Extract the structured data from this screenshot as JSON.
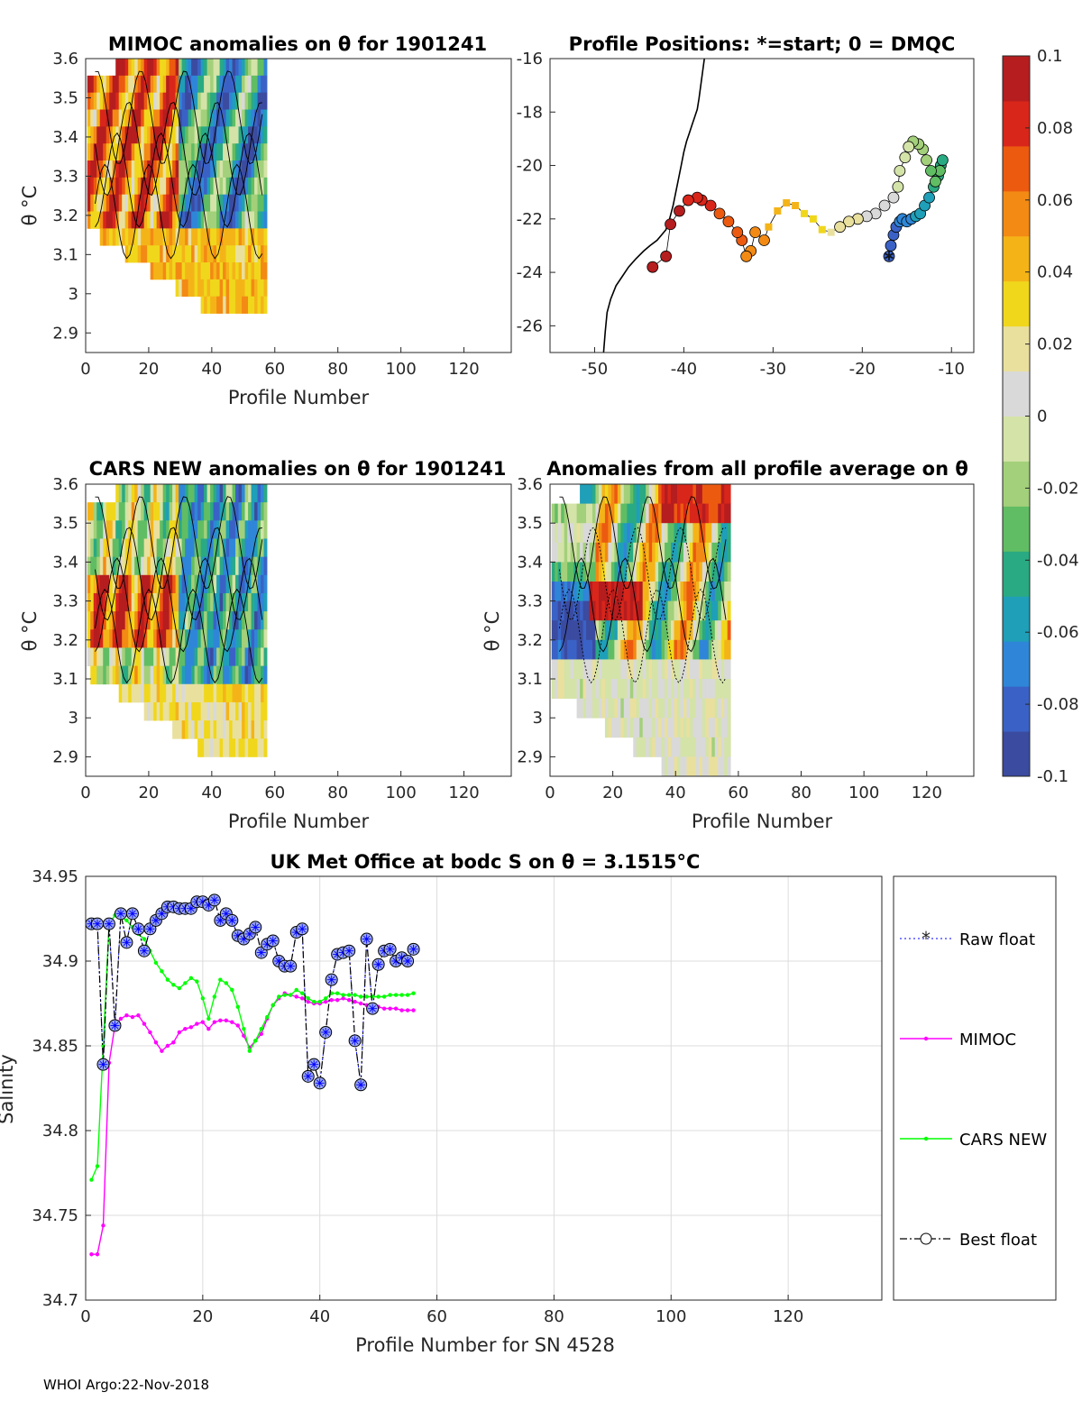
{
  "footer": "WHOI Argo:22-Nov-2018",
  "colors": {
    "raw_float": "#0000ff",
    "mimoc": "#ff00ff",
    "cars_new": "#00ff00",
    "best_float": "#000000",
    "best_marker_fill": "#9aa8ee",
    "axis": "#262626",
    "grid": "#dcdcdc",
    "colormap": [
      "#3b4ba0",
      "#3a62c6",
      "#2f86d8",
      "#1f9fb8",
      "#2aaa82",
      "#61bd63",
      "#a3d07a",
      "#d4e3a8",
      "#d9d9d9",
      "#e9e09e",
      "#f0d71c",
      "#f4b418",
      "#f38a14",
      "#ec5a10",
      "#d9261a",
      "#b51d1f"
    ]
  },
  "colorbar": {
    "ticks": [
      "0.1",
      "0.08",
      "0.06",
      "0.04",
      "0.02",
      "0",
      "-0.02",
      "-0.04",
      "-0.06",
      "-0.08",
      "-0.1"
    ],
    "lim": [
      -0.1,
      0.1
    ]
  },
  "chart_data": [
    {
      "id": "mimoc",
      "type": "heatmap",
      "title": "MIMOC anomalies on θ  for 1901241",
      "xlabel": "Profile Number",
      "ylabel": "θ °C",
      "xlim": [
        0,
        135
      ],
      "ylim": [
        2.85,
        3.6
      ],
      "xticks": [
        "0",
        "20",
        "40",
        "60",
        "80",
        "100",
        "120"
      ],
      "yticks": [
        "3.6",
        "3.5",
        "3.4",
        "3.3",
        "3.2",
        "3.1",
        "3",
        "2.9"
      ],
      "xrange_data": [
        1,
        57
      ],
      "theta_range": [
        2.95,
        3.6
      ],
      "anomaly_range": [
        -0.1,
        0.1
      ]
    },
    {
      "id": "positions",
      "type": "scatter",
      "title": "Profile Positions: *=start; 0 = DMQC",
      "xlim": [
        -55,
        -7.5
      ],
      "ylim": [
        -27,
        -16
      ],
      "xticks": [
        "-50",
        "-40",
        "-30",
        "-20",
        "-10"
      ],
      "yticks": [
        "-16",
        "-18",
        "-20",
        "-22",
        "-24",
        "-26"
      ],
      "start": [
        -17,
        -23.5
      ],
      "track_lon": [
        -17,
        -16.8,
        -16.5,
        -16.2,
        -15.8,
        -15.5,
        -15,
        -14.5,
        -14,
        -13.5,
        -13,
        -12.5,
        -12,
        -11.5,
        -11.2,
        -11,
        -11.3,
        -11.8,
        -12.3,
        -12.8,
        -13.2,
        -13.7,
        -14.3,
        -14.8,
        -15.2,
        -15.8,
        -16,
        -16.5,
        -17.5,
        -18.5,
        -19.5,
        -20.5,
        -21.5,
        -22.5,
        -23.5,
        -24.5,
        -25.5,
        -26.5,
        -27.5,
        -28.5,
        -29.5,
        -30.5,
        -31,
        -32,
        -32.5,
        -33,
        -33.5,
        -34,
        -35,
        -36,
        -37,
        -38,
        -38.5,
        -39.5,
        -40.5,
        -41.5,
        -42,
        -43.5
      ],
      "track_lat": [
        -23.4,
        -23,
        -22.6,
        -22.3,
        -22.1,
        -22,
        -22.1,
        -22,
        -21.9,
        -21.8,
        -21.5,
        -21.2,
        -20.8,
        -20.4,
        -20,
        -19.8,
        -20.2,
        -20.6,
        -20.2,
        -19.8,
        -19.4,
        -19.2,
        -19.1,
        -19.3,
        -19.7,
        -20.2,
        -20.8,
        -21.2,
        -21.5,
        -21.8,
        -21.9,
        -22,
        -22.1,
        -22.3,
        -22.5,
        -22.4,
        -22,
        -21.8,
        -21.5,
        -21.4,
        -21.7,
        -22.3,
        -22.8,
        -22.5,
        -23.2,
        -23.4,
        -22.8,
        -22.5,
        -22.1,
        -21.8,
        -21.5,
        -21.3,
        -21.2,
        -21.3,
        -21.7,
        -22.2,
        -23.4,
        -23.8
      ],
      "coast_lon": [
        -49,
        -48.8,
        -48.6,
        -48.2,
        -47.6,
        -47,
        -46.2,
        -45.4,
        -44.5,
        -43.8,
        -43,
        -42.5,
        -42,
        -41.6,
        -41.2,
        -40.9,
        -40.6,
        -40.3,
        -40,
        -39.7,
        -39.4,
        -39.1,
        -38.8,
        -38.5,
        -38.3,
        -38.1,
        -37.9,
        -37.7
      ],
      "coast_lat": [
        -27,
        -26.2,
        -25.5,
        -25,
        -24.5,
        -24.2,
        -23.8,
        -23.5,
        -23.2,
        -23,
        -22.8,
        -22.6,
        -22.4,
        -22,
        -21.5,
        -21,
        -20.5,
        -20,
        -19.5,
        -19.1,
        -18.8,
        -18.5,
        -18.2,
        -17.9,
        -17.5,
        -17,
        -16.5,
        -16
      ]
    },
    {
      "id": "cars",
      "type": "heatmap",
      "title": "CARS NEW anomalies on θ for 1901241",
      "xlabel": "Profile Number",
      "ylabel": "θ °C",
      "xlim": [
        0,
        135
      ],
      "ylim": [
        2.85,
        3.6
      ],
      "xticks": [
        "0",
        "20",
        "40",
        "60",
        "80",
        "100",
        "120"
      ],
      "yticks": [
        "3.6",
        "3.5",
        "3.4",
        "3.3",
        "3.2",
        "3.1",
        "3",
        "2.9"
      ],
      "xrange_data": [
        1,
        57
      ],
      "theta_range": [
        2.9,
        3.6
      ],
      "anomaly_range": [
        -0.1,
        0.1
      ]
    },
    {
      "id": "allavg",
      "type": "heatmap",
      "title": "Anomalies from all profile average on θ",
      "xlabel": "Profile Number",
      "ylabel": "θ °C",
      "xlim": [
        0,
        135
      ],
      "ylim": [
        2.85,
        3.6
      ],
      "xticks": [
        "0",
        "20",
        "40",
        "60",
        "80",
        "100",
        "120"
      ],
      "yticks": [
        "3.6",
        "3.5",
        "3.4",
        "3.3",
        "3.2",
        "3.1",
        "3",
        "2.9"
      ],
      "xrange_data": [
        1,
        57
      ],
      "theta_range": [
        2.85,
        3.6
      ],
      "anomaly_range": [
        -0.1,
        0.1
      ]
    },
    {
      "id": "salinity",
      "type": "line",
      "title": "UK Met Office at bodc S on θ = 3.1515°C",
      "xlabel": "Profile Number for SN 4528",
      "ylabel": "Salinity",
      "xlim": [
        0,
        136
      ],
      "ylim": [
        34.7,
        34.95
      ],
      "xticks": [
        "0",
        "20",
        "40",
        "60",
        "80",
        "100",
        "120"
      ],
      "yticks": [
        "34.95",
        "34.9",
        "34.85",
        "34.8",
        "34.75",
        "34.7"
      ],
      "legend": [
        "Raw float",
        "MIMOC",
        "CARS NEW",
        "Best float"
      ],
      "series": [
        {
          "name": "Raw float",
          "x": [
            1,
            2,
            3,
            4,
            5,
            6,
            7,
            8,
            9,
            10,
            11,
            12,
            13,
            14,
            15,
            16,
            17,
            18,
            19,
            20,
            21,
            22,
            23,
            24,
            25,
            26,
            27,
            28,
            29,
            30,
            31,
            32,
            33,
            34,
            35,
            36,
            37,
            38,
            39,
            40,
            41,
            42,
            43,
            44,
            45,
            46,
            47,
            48,
            49,
            50,
            51,
            52,
            53,
            54,
            55,
            56
          ],
          "values": [
            34.922,
            34.922,
            34.839,
            34.922,
            34.862,
            34.928,
            34.911,
            34.928,
            34.919,
            34.906,
            34.919,
            34.924,
            34.928,
            34.932,
            34.932,
            34.931,
            34.931,
            34.931,
            34.935,
            34.935,
            34.933,
            34.936,
            34.924,
            34.928,
            34.924,
            34.915,
            34.913,
            34.916,
            34.92,
            34.905,
            34.91,
            34.912,
            34.9,
            34.897,
            34.897,
            34.917,
            34.919,
            34.832,
            34.839,
            34.828,
            34.858,
            34.889,
            34.904,
            34.905,
            34.906,
            34.853,
            34.827,
            34.913,
            34.872,
            34.898,
            34.906,
            34.907,
            34.9,
            34.902,
            34.9,
            34.907
          ]
        },
        {
          "name": "MIMOC",
          "x": [
            1,
            2,
            3,
            4,
            5,
            6,
            7,
            8,
            9,
            10,
            11,
            12,
            13,
            14,
            15,
            16,
            17,
            18,
            19,
            20,
            21,
            22,
            23,
            24,
            25,
            26,
            27,
            28,
            29,
            30,
            31,
            32,
            33,
            34,
            35,
            36,
            37,
            38,
            39,
            40,
            41,
            42,
            43,
            44,
            45,
            46,
            47,
            48,
            49,
            50,
            51,
            52,
            53,
            54,
            55,
            56
          ],
          "values": [
            34.727,
            34.727,
            34.744,
            34.84,
            34.862,
            34.866,
            34.868,
            34.867,
            34.868,
            34.863,
            34.858,
            34.852,
            34.847,
            34.85,
            34.852,
            34.858,
            34.86,
            34.861,
            34.863,
            34.864,
            34.86,
            34.864,
            34.865,
            34.865,
            34.864,
            34.862,
            34.856,
            34.849,
            34.853,
            34.857,
            34.866,
            34.874,
            34.878,
            34.881,
            34.88,
            34.879,
            34.878,
            34.876,
            34.875,
            34.875,
            34.876,
            34.877,
            34.877,
            34.878,
            34.877,
            34.876,
            34.875,
            34.874,
            34.874,
            34.873,
            34.872,
            34.872,
            34.872,
            34.871,
            34.871,
            34.871
          ]
        },
        {
          "name": "CARS NEW",
          "x": [
            1,
            2,
            3,
            4,
            5,
            6,
            7,
            8,
            9,
            10,
            11,
            12,
            13,
            14,
            15,
            16,
            17,
            18,
            19,
            20,
            21,
            22,
            23,
            24,
            25,
            26,
            27,
            28,
            29,
            30,
            31,
            32,
            33,
            34,
            35,
            36,
            37,
            38,
            39,
            40,
            41,
            42,
            43,
            44,
            45,
            46,
            47,
            48,
            49,
            50,
            51,
            52,
            53,
            54,
            55,
            56
          ],
          "values": [
            34.771,
            34.779,
            34.85,
            34.922,
            34.927,
            34.926,
            34.924,
            34.92,
            34.916,
            34.913,
            34.906,
            34.899,
            34.894,
            34.889,
            34.886,
            34.884,
            34.887,
            34.89,
            34.888,
            34.878,
            34.866,
            34.879,
            34.889,
            34.887,
            34.883,
            34.873,
            34.86,
            34.847,
            34.853,
            34.86,
            34.867,
            34.874,
            34.879,
            34.88,
            34.88,
            34.883,
            34.881,
            34.878,
            34.876,
            34.876,
            34.878,
            34.881,
            34.881,
            34.88,
            34.88,
            34.88,
            34.879,
            34.879,
            34.879,
            34.879,
            34.879,
            34.88,
            34.88,
            34.88,
            34.88,
            34.881
          ]
        },
        {
          "name": "Best float",
          "x": [
            1,
            2,
            3,
            4,
            5,
            6,
            7,
            8,
            9,
            10,
            11,
            12,
            13,
            14,
            15,
            16,
            17,
            18,
            19,
            20,
            21,
            22,
            23,
            24,
            25,
            26,
            27,
            28,
            29,
            30,
            31,
            32,
            33,
            34,
            35,
            36,
            37,
            38,
            39,
            40,
            41,
            42,
            43,
            44,
            45,
            46,
            47,
            48,
            49,
            50,
            51,
            52,
            53,
            54,
            55,
            56
          ],
          "values": [
            34.922,
            34.922,
            34.839,
            34.922,
            34.862,
            34.928,
            34.911,
            34.928,
            34.919,
            34.906,
            34.919,
            34.924,
            34.928,
            34.932,
            34.932,
            34.931,
            34.931,
            34.931,
            34.935,
            34.935,
            34.933,
            34.936,
            34.924,
            34.928,
            34.924,
            34.915,
            34.913,
            34.916,
            34.92,
            34.905,
            34.91,
            34.912,
            34.9,
            34.897,
            34.897,
            34.917,
            34.919,
            34.832,
            34.839,
            34.828,
            34.858,
            34.889,
            34.904,
            34.905,
            34.906,
            34.853,
            34.827,
            34.913,
            34.872,
            34.898,
            34.906,
            34.907,
            34.9,
            34.902,
            34.9,
            34.907
          ]
        }
      ]
    }
  ]
}
